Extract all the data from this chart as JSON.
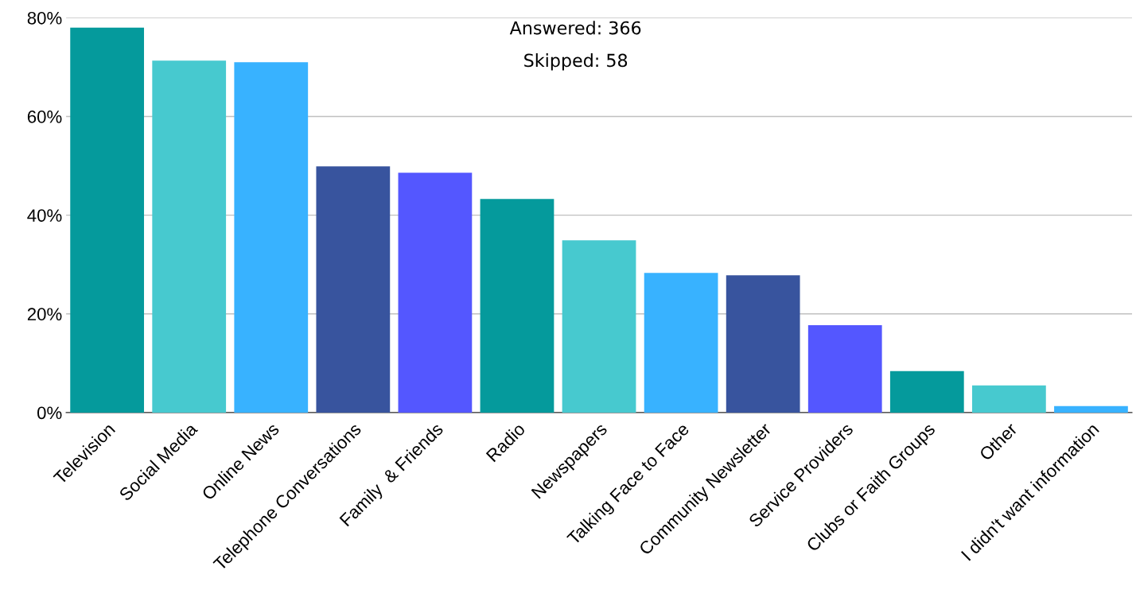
{
  "chart_data": {
    "type": "bar",
    "categories": [
      "Television",
      "Social Media",
      "Online News",
      "Telephone Conversations",
      "Family  & Friends",
      "Radio",
      "Newspapers",
      "Talking Face to Face",
      "Community Newsletter",
      "Service Providers",
      "Clubs or Faith Groups",
      "Other",
      "I didn't want information"
    ],
    "values": [
      78,
      71.3,
      71,
      49.9,
      48.6,
      43.3,
      34.9,
      28.3,
      27.8,
      17.7,
      8.4,
      5.5,
      1.3
    ],
    "colors": [
      "#059a9c",
      "#47c9cf",
      "#38b2ff",
      "#38549e",
      "#5457ff",
      "#059a9c",
      "#47c9cf",
      "#38b2ff",
      "#38549e",
      "#5457ff",
      "#059a9c",
      "#47c9cf",
      "#38b2ff"
    ],
    "ylim": [
      0,
      80
    ],
    "yticks": [
      {
        "value": 0,
        "label": "0%"
      },
      {
        "value": 20,
        "label": "20%"
      },
      {
        "value": 40,
        "label": "40%"
      },
      {
        "value": 60,
        "label": "60%"
      },
      {
        "value": 80,
        "label": "80%"
      }
    ],
    "grid": "y",
    "annotations": [
      "Answered: 366",
      "Skipped: 58"
    ]
  }
}
